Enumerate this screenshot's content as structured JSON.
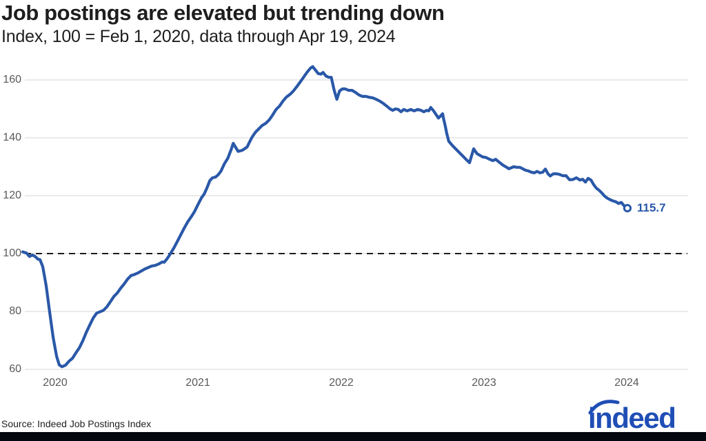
{
  "page": {
    "title": "Job postings are elevated but trending down",
    "subtitle": "Index, 100 = Feb 1, 2020, data through Apr 19, 2024",
    "source": "Source: Indeed Job Postings Index",
    "logo_text": "indeed"
  },
  "colors": {
    "background": "#ffffff",
    "line": "#2a58a8",
    "end_marker_fill": "#ffffff",
    "value_label": "#2a58a8",
    "grid": "#e4e4e4",
    "reference_dash": "#1a1a1a",
    "axis_text": "#595959",
    "heading_text": "#1e1e1e",
    "logo_blue": "#1f4eb5",
    "footer_bar": "#04080e"
  },
  "chart_data": {
    "type": "line",
    "title": "Job postings are elevated but trending down",
    "subtitle": "Index, 100 = Feb 1, 2020, data through Apr 19, 2024",
    "source": "Source: Indeed Job Postings Index",
    "xlabel": "",
    "ylabel": "",
    "x_unit": "year (axis position)",
    "xlim": [
      2019.77,
      2024.48
    ],
    "ylim": [
      57,
      167
    ],
    "y_ticks": [
      60,
      80,
      100,
      120,
      140,
      160
    ],
    "x_ticks": [
      2020,
      2021,
      2022,
      2023,
      2024
    ],
    "x_tick_labels": [
      "2020",
      "2021",
      "2022",
      "2023",
      "2024"
    ],
    "grid": "horizontal-only",
    "legend": "none",
    "reference_line": {
      "value": 100,
      "style": "dashed",
      "color": "#1a1a1a"
    },
    "end_point": {
      "x": 2024.004,
      "value": 115.7,
      "label": "115.7",
      "marker": "open-circle"
    },
    "series": [
      {
        "name": "Indeed Job Postings Index",
        "points": [
          [
            2019.773,
            100.6
          ],
          [
            2019.8,
            100.2
          ],
          [
            2019.82,
            99.0
          ],
          [
            2019.841,
            99.5
          ],
          [
            2019.86,
            99.0
          ],
          [
            2019.879,
            98.1
          ],
          [
            2019.894,
            97.9
          ],
          [
            2019.913,
            95.5
          ],
          [
            2019.937,
            89.0
          ],
          [
            2019.961,
            80.0
          ],
          [
            2019.986,
            71.0
          ],
          [
            2020.01,
            64.5
          ],
          [
            2020.029,
            61.5
          ],
          [
            2020.048,
            60.9
          ],
          [
            2020.072,
            61.4
          ],
          [
            2020.097,
            62.8
          ],
          [
            2020.121,
            63.8
          ],
          [
            2020.145,
            65.7
          ],
          [
            2020.169,
            67.4
          ],
          [
            2020.193,
            69.8
          ],
          [
            2020.217,
            72.7
          ],
          [
            2020.242,
            75.3
          ],
          [
            2020.266,
            77.7
          ],
          [
            2020.29,
            79.4
          ],
          [
            2020.314,
            79.9
          ],
          [
            2020.338,
            80.4
          ],
          [
            2020.362,
            81.6
          ],
          [
            2020.386,
            83.3
          ],
          [
            2020.411,
            85.2
          ],
          [
            2020.435,
            86.4
          ],
          [
            2020.459,
            88.1
          ],
          [
            2020.483,
            89.5
          ],
          [
            2020.507,
            91.2
          ],
          [
            2020.531,
            92.4
          ],
          [
            2020.556,
            92.8
          ],
          [
            2020.58,
            93.3
          ],
          [
            2020.604,
            94.0
          ],
          [
            2020.628,
            94.7
          ],
          [
            2020.652,
            95.2
          ],
          [
            2020.676,
            95.7
          ],
          [
            2020.7,
            95.9
          ],
          [
            2020.725,
            96.4
          ],
          [
            2020.749,
            97.1
          ],
          [
            2020.763,
            97.0
          ],
          [
            2020.783,
            98.2
          ],
          [
            2020.807,
            100.0
          ],
          [
            2020.831,
            102.0
          ],
          [
            2020.855,
            104.2
          ],
          [
            2020.879,
            106.5
          ],
          [
            2020.903,
            108.8
          ],
          [
            2020.928,
            111.0
          ],
          [
            2020.952,
            112.7
          ],
          [
            2020.976,
            114.6
          ],
          [
            2021.0,
            117.0
          ],
          [
            2021.024,
            119.3
          ],
          [
            2021.043,
            120.6
          ],
          [
            2021.063,
            122.8
          ],
          [
            2021.082,
            125.2
          ],
          [
            2021.101,
            126.2
          ],
          [
            2021.121,
            126.4
          ],
          [
            2021.14,
            127.2
          ],
          [
            2021.159,
            128.4
          ],
          [
            2021.184,
            131.0
          ],
          [
            2021.208,
            132.9
          ],
          [
            2021.232,
            136.0
          ],
          [
            2021.246,
            138.1
          ],
          [
            2021.28,
            135.3
          ],
          [
            2021.309,
            135.7
          ],
          [
            2021.343,
            136.8
          ],
          [
            2021.358,
            138.3
          ],
          [
            2021.377,
            140.2
          ],
          [
            2021.401,
            141.9
          ],
          [
            2021.425,
            143.1
          ],
          [
            2021.449,
            144.3
          ],
          [
            2021.473,
            145.0
          ],
          [
            2021.498,
            146.2
          ],
          [
            2021.522,
            147.9
          ],
          [
            2021.546,
            149.8
          ],
          [
            2021.57,
            151.0
          ],
          [
            2021.594,
            152.7
          ],
          [
            2021.618,
            154.1
          ],
          [
            2021.643,
            155.0
          ],
          [
            2021.667,
            156.2
          ],
          [
            2021.691,
            157.7
          ],
          [
            2021.715,
            159.3
          ],
          [
            2021.739,
            161.0
          ],
          [
            2021.763,
            162.7
          ],
          [
            2021.787,
            164.1
          ],
          [
            2021.802,
            164.6
          ],
          [
            2021.821,
            163.4
          ],
          [
            2021.841,
            162.2
          ],
          [
            2021.86,
            162.0
          ],
          [
            2021.874,
            162.6
          ],
          [
            2021.894,
            161.4
          ],
          [
            2021.913,
            160.9
          ],
          [
            2021.932,
            160.9
          ],
          [
            2021.952,
            156.5
          ],
          [
            2021.971,
            153.3
          ],
          [
            2021.99,
            156.2
          ],
          [
            2022.01,
            156.9
          ],
          [
            2022.029,
            156.9
          ],
          [
            2022.053,
            156.4
          ],
          [
            2022.077,
            156.4
          ],
          [
            2022.101,
            155.7
          ],
          [
            2022.126,
            154.8
          ],
          [
            2022.15,
            154.3
          ],
          [
            2022.174,
            154.3
          ],
          [
            2022.198,
            154.0
          ],
          [
            2022.222,
            153.8
          ],
          [
            2022.246,
            153.3
          ],
          [
            2022.271,
            152.7
          ],
          [
            2022.295,
            151.9
          ],
          [
            2022.319,
            151.0
          ],
          [
            2022.343,
            150.0
          ],
          [
            2022.362,
            149.5
          ],
          [
            2022.381,
            150.0
          ],
          [
            2022.4,
            149.8
          ],
          [
            2022.42,
            149.0
          ],
          [
            2022.439,
            149.8
          ],
          [
            2022.463,
            149.3
          ],
          [
            2022.488,
            149.8
          ],
          [
            2022.512,
            149.3
          ],
          [
            2022.536,
            149.8
          ],
          [
            2022.56,
            149.5
          ],
          [
            2022.58,
            149.0
          ],
          [
            2022.599,
            149.5
          ],
          [
            2022.614,
            149.3
          ],
          [
            2022.628,
            150.5
          ],
          [
            2022.648,
            149.3
          ],
          [
            2022.682,
            146.8
          ],
          [
            2022.711,
            148.3
          ],
          [
            2022.716,
            147.0
          ],
          [
            2022.73,
            144.0
          ],
          [
            2022.74,
            141.5
          ],
          [
            2022.754,
            138.8
          ],
          [
            2022.778,
            137.4
          ],
          [
            2022.802,
            136.2
          ],
          [
            2022.826,
            135.0
          ],
          [
            2022.85,
            133.8
          ],
          [
            2022.874,
            132.6
          ],
          [
            2022.899,
            131.4
          ],
          [
            2022.928,
            136.2
          ],
          [
            2022.952,
            134.5
          ],
          [
            2022.991,
            133.4
          ],
          [
            2023.015,
            133.2
          ],
          [
            2023.039,
            132.6
          ],
          [
            2023.063,
            132.1
          ],
          [
            2023.082,
            132.6
          ],
          [
            2023.111,
            131.4
          ],
          [
            2023.135,
            130.5
          ],
          [
            2023.159,
            129.8
          ],
          [
            2023.174,
            129.3
          ],
          [
            2023.208,
            130.0
          ],
          [
            2023.232,
            129.8
          ],
          [
            2023.251,
            129.8
          ],
          [
            2023.271,
            129.3
          ],
          [
            2023.29,
            128.8
          ],
          [
            2023.309,
            128.6
          ],
          [
            2023.333,
            128.1
          ],
          [
            2023.353,
            127.9
          ],
          [
            2023.372,
            128.4
          ],
          [
            2023.391,
            127.9
          ],
          [
            2023.411,
            128.1
          ],
          [
            2023.43,
            129.2
          ],
          [
            2023.449,
            127.5
          ],
          [
            2023.464,
            126.8
          ],
          [
            2023.483,
            127.5
          ],
          [
            2023.502,
            127.6
          ],
          [
            2023.527,
            127.4
          ],
          [
            2023.551,
            126.9
          ],
          [
            2023.575,
            126.9
          ],
          [
            2023.599,
            125.5
          ],
          [
            2023.623,
            125.6
          ],
          [
            2023.647,
            126.2
          ],
          [
            2023.671,
            125.4
          ],
          [
            2023.691,
            125.7
          ],
          [
            2023.71,
            124.7
          ],
          [
            2023.729,
            126.0
          ],
          [
            2023.749,
            125.4
          ],
          [
            2023.768,
            123.8
          ],
          [
            2023.787,
            122.6
          ],
          [
            2023.807,
            121.8
          ],
          [
            2023.826,
            120.9
          ],
          [
            2023.845,
            119.8
          ],
          [
            2023.865,
            119.1
          ],
          [
            2023.884,
            118.6
          ],
          [
            2023.903,
            118.2
          ],
          [
            2023.923,
            117.9
          ],
          [
            2023.942,
            117.3
          ],
          [
            2023.961,
            117.7
          ],
          [
            2023.981,
            116.5
          ],
          [
            2024.004,
            115.7
          ]
        ]
      }
    ]
  }
}
